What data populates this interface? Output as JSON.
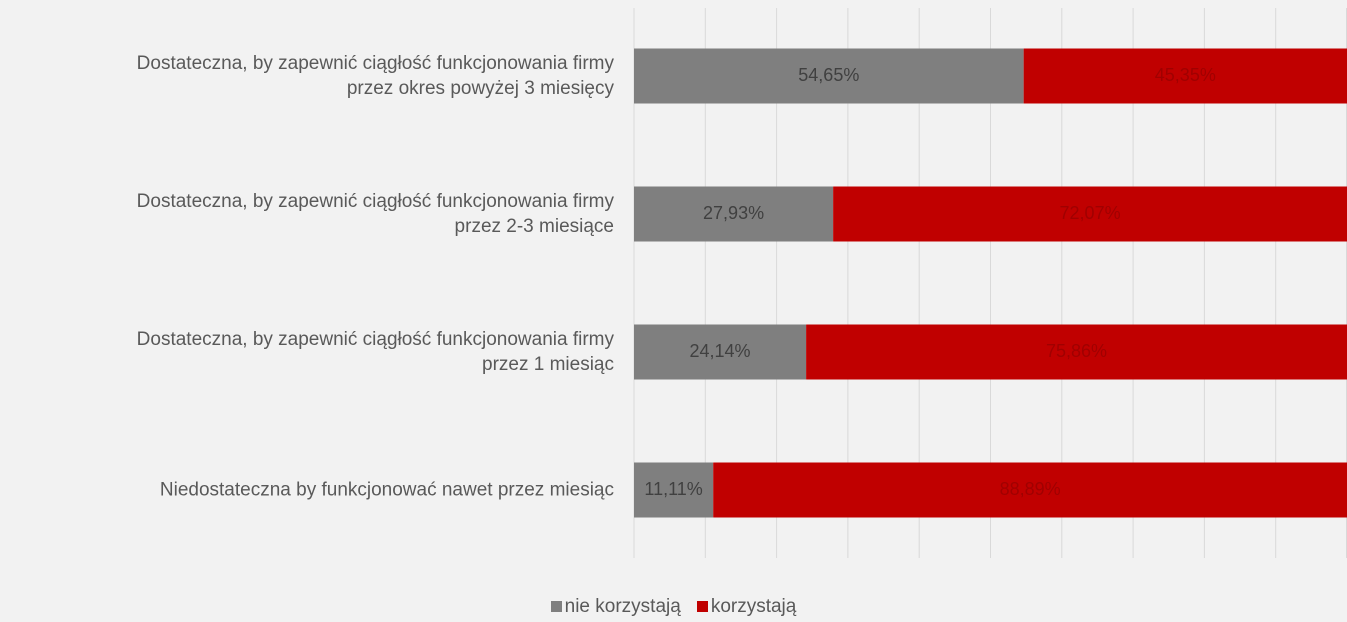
{
  "chart_data": {
    "type": "stacked-bar-horizontal",
    "categories": [
      "Dostateczna, by zapewnić ciągłość funkcjonowania firmy\nprzez okres powyżej 3 miesięcy",
      "Dostateczna, by zapewnić ciągłość funkcjonowania firmy\nprzez 2-3 miesiące",
      "Dostateczna, by zapewnić ciągłość funkcjonowania firmy\nprzez 1 miesiąc",
      "Niedostateczna by funkcjonować nawet przez miesiąc"
    ],
    "series": [
      {
        "name": "nie korzystają",
        "color": "#7f7f7f",
        "values": [
          54.65,
          27.93,
          24.14,
          11.11
        ],
        "value_labels": [
          "54,65%",
          "27,93%",
          "24,14%",
          "11,11%"
        ]
      },
      {
        "name": "korzystają",
        "color": "#c00000",
        "values": [
          45.35,
          72.07,
          75.86,
          88.89
        ],
        "value_labels": [
          "45,35%",
          "72,07%",
          "75,86%",
          "88,89%"
        ]
      }
    ],
    "xlim": [
      0,
      100
    ],
    "xticks": [
      0,
      10,
      20,
      30,
      40,
      50,
      60,
      70,
      80,
      90,
      100
    ],
    "grid": true,
    "legend": "bottom"
  }
}
